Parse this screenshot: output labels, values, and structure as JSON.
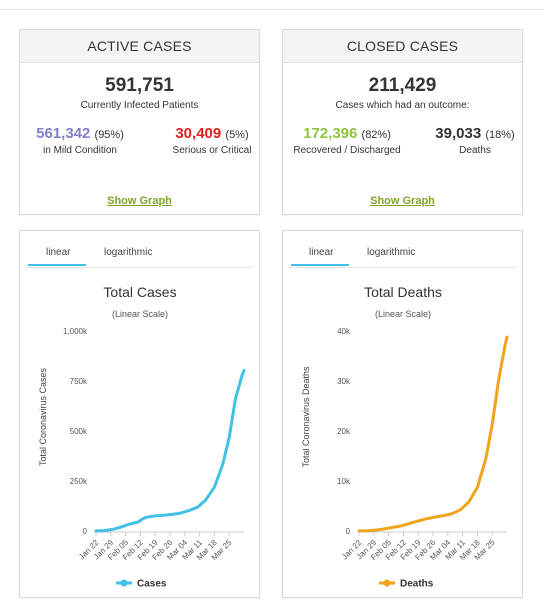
{
  "active": {
    "header": "ACTIVE CASES",
    "total": "591,751",
    "total_label": "Currently Infected Patients",
    "mild_value": "561,342",
    "mild_pct": "(95%)",
    "mild_label": "in Mild Condition",
    "serious_value": "30,409",
    "serious_pct": "(5%)",
    "serious_label": "Serious or Critical",
    "show_graph": "Show Graph"
  },
  "closed": {
    "header": "CLOSED CASES",
    "total": "211,429",
    "total_label": "Cases which had an outcome:",
    "recovered_value": "172,396",
    "recovered_pct": "(82%)",
    "recovered_label": "Recovered / Discharged",
    "deaths_value": "39,033",
    "deaths_pct": "(18%)",
    "deaths_label": "Deaths",
    "show_graph": "Show Graph"
  },
  "colors": {
    "mild": "#8080c8",
    "serious": "#e0201e",
    "recovered": "#8dc63f",
    "link": "#7da42b",
    "cases_line": "#42c0e6",
    "deaths_line": "#f0a31e"
  },
  "chart_data": [
    {
      "type": "line",
      "tabs": [
        "linear",
        "logarithmic"
      ],
      "active_tab": "linear",
      "title": "Total Cases",
      "subtitle": "(Linear Scale)",
      "ylabel": "Total Coronavirus Cases",
      "ylim": [
        0,
        1000000
      ],
      "yticks": [
        0,
        250000,
        500000,
        750000,
        1000000
      ],
      "ytick_labels": [
        "0",
        "250k",
        "500k",
        "750k",
        "1,000k"
      ],
      "xticks": [
        "Jan 22",
        "Jan 29",
        "Feb 05",
        "Feb 12",
        "Feb 19",
        "Feb 26",
        "Mar 04",
        "Mar 11",
        "Mar 18",
        "Mar 25"
      ],
      "x_range": [
        "Jan 22",
        "Apr 01"
      ],
      "legend": "bottom",
      "grid": false,
      "series": [
        {
          "name": "Cases",
          "color": "#42c0e6",
          "x": [
            "Jan 22",
            "Jan 26",
            "Jan 30",
            "Feb 03",
            "Feb 07",
            "Feb 11",
            "Feb 13",
            "Feb 15",
            "Feb 19",
            "Feb 23",
            "Feb 27",
            "Mar 02",
            "Mar 06",
            "Mar 10",
            "Mar 14",
            "Mar 18",
            "Mar 22",
            "Mar 25",
            "Mar 28",
            "Mar 31",
            "Apr 01"
          ],
          "values": [
            600,
            2100,
            8200,
            20600,
            34900,
            45200,
            60400,
            69000,
            75700,
            79000,
            83000,
            89300,
            101800,
            119000,
            156500,
            218900,
            336000,
            467500,
            662000,
            776000,
            803000
          ]
        }
      ]
    },
    {
      "type": "line",
      "tabs": [
        "linear",
        "logarithmic"
      ],
      "active_tab": "linear",
      "title": "Total Deaths",
      "subtitle": "(Linear Scale)",
      "ylabel": "Total Coronavirus Deaths",
      "ylim": [
        0,
        40000
      ],
      "yticks": [
        0,
        10000,
        20000,
        30000,
        40000
      ],
      "ytick_labels": [
        "0",
        "10k",
        "20k",
        "30k",
        "40k"
      ],
      "xticks": [
        "Jan 22",
        "Jan 29",
        "Feb 05",
        "Feb 12",
        "Feb 19",
        "Feb 26",
        "Mar 04",
        "Mar 11",
        "Mar 18",
        "Mar 25"
      ],
      "x_range": [
        "Jan 22",
        "Apr 01"
      ],
      "legend": "bottom",
      "grid": false,
      "series": [
        {
          "name": "Deaths",
          "color": "#f0a31e",
          "x": [
            "Jan 22",
            "Jan 26",
            "Jan 30",
            "Feb 03",
            "Feb 07",
            "Feb 11",
            "Feb 15",
            "Feb 19",
            "Feb 23",
            "Feb 27",
            "Mar 02",
            "Mar 06",
            "Mar 10",
            "Mar 14",
            "Mar 18",
            "Mar 22",
            "Mar 25",
            "Mar 28",
            "Mar 31",
            "Apr 01"
          ],
          "values": [
            17,
            56,
            171,
            426,
            724,
            1018,
            1526,
            2009,
            2469,
            2801,
            3085,
            3460,
            4262,
            5819,
            8732,
            14510,
            21296,
            30000,
            37000,
            38800
          ]
        }
      ]
    }
  ]
}
